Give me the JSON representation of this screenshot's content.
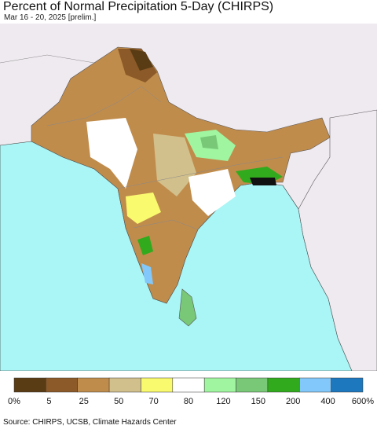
{
  "header": {
    "title": "Percent of Normal Precipitation 5-Day (CHIRPS)",
    "subtitle": "Mar 16 - 20, 2025 [prelim.]"
  },
  "legend": {
    "colors": [
      "#5a3c14",
      "#8c5a28",
      "#c08c4c",
      "#d2c08c",
      "#fafa6e",
      "#ffffff",
      "#a0f5a0",
      "#78c878",
      "#32aa1e",
      "#82c8fa",
      "#1e78be"
    ],
    "labels": [
      "0%",
      "5",
      "25",
      "50",
      "70",
      "80",
      "120",
      "150",
      "200",
      "400",
      "600%"
    ]
  },
  "source": "Source: CHIRPS, UCSB, Climate Hazards Center"
}
